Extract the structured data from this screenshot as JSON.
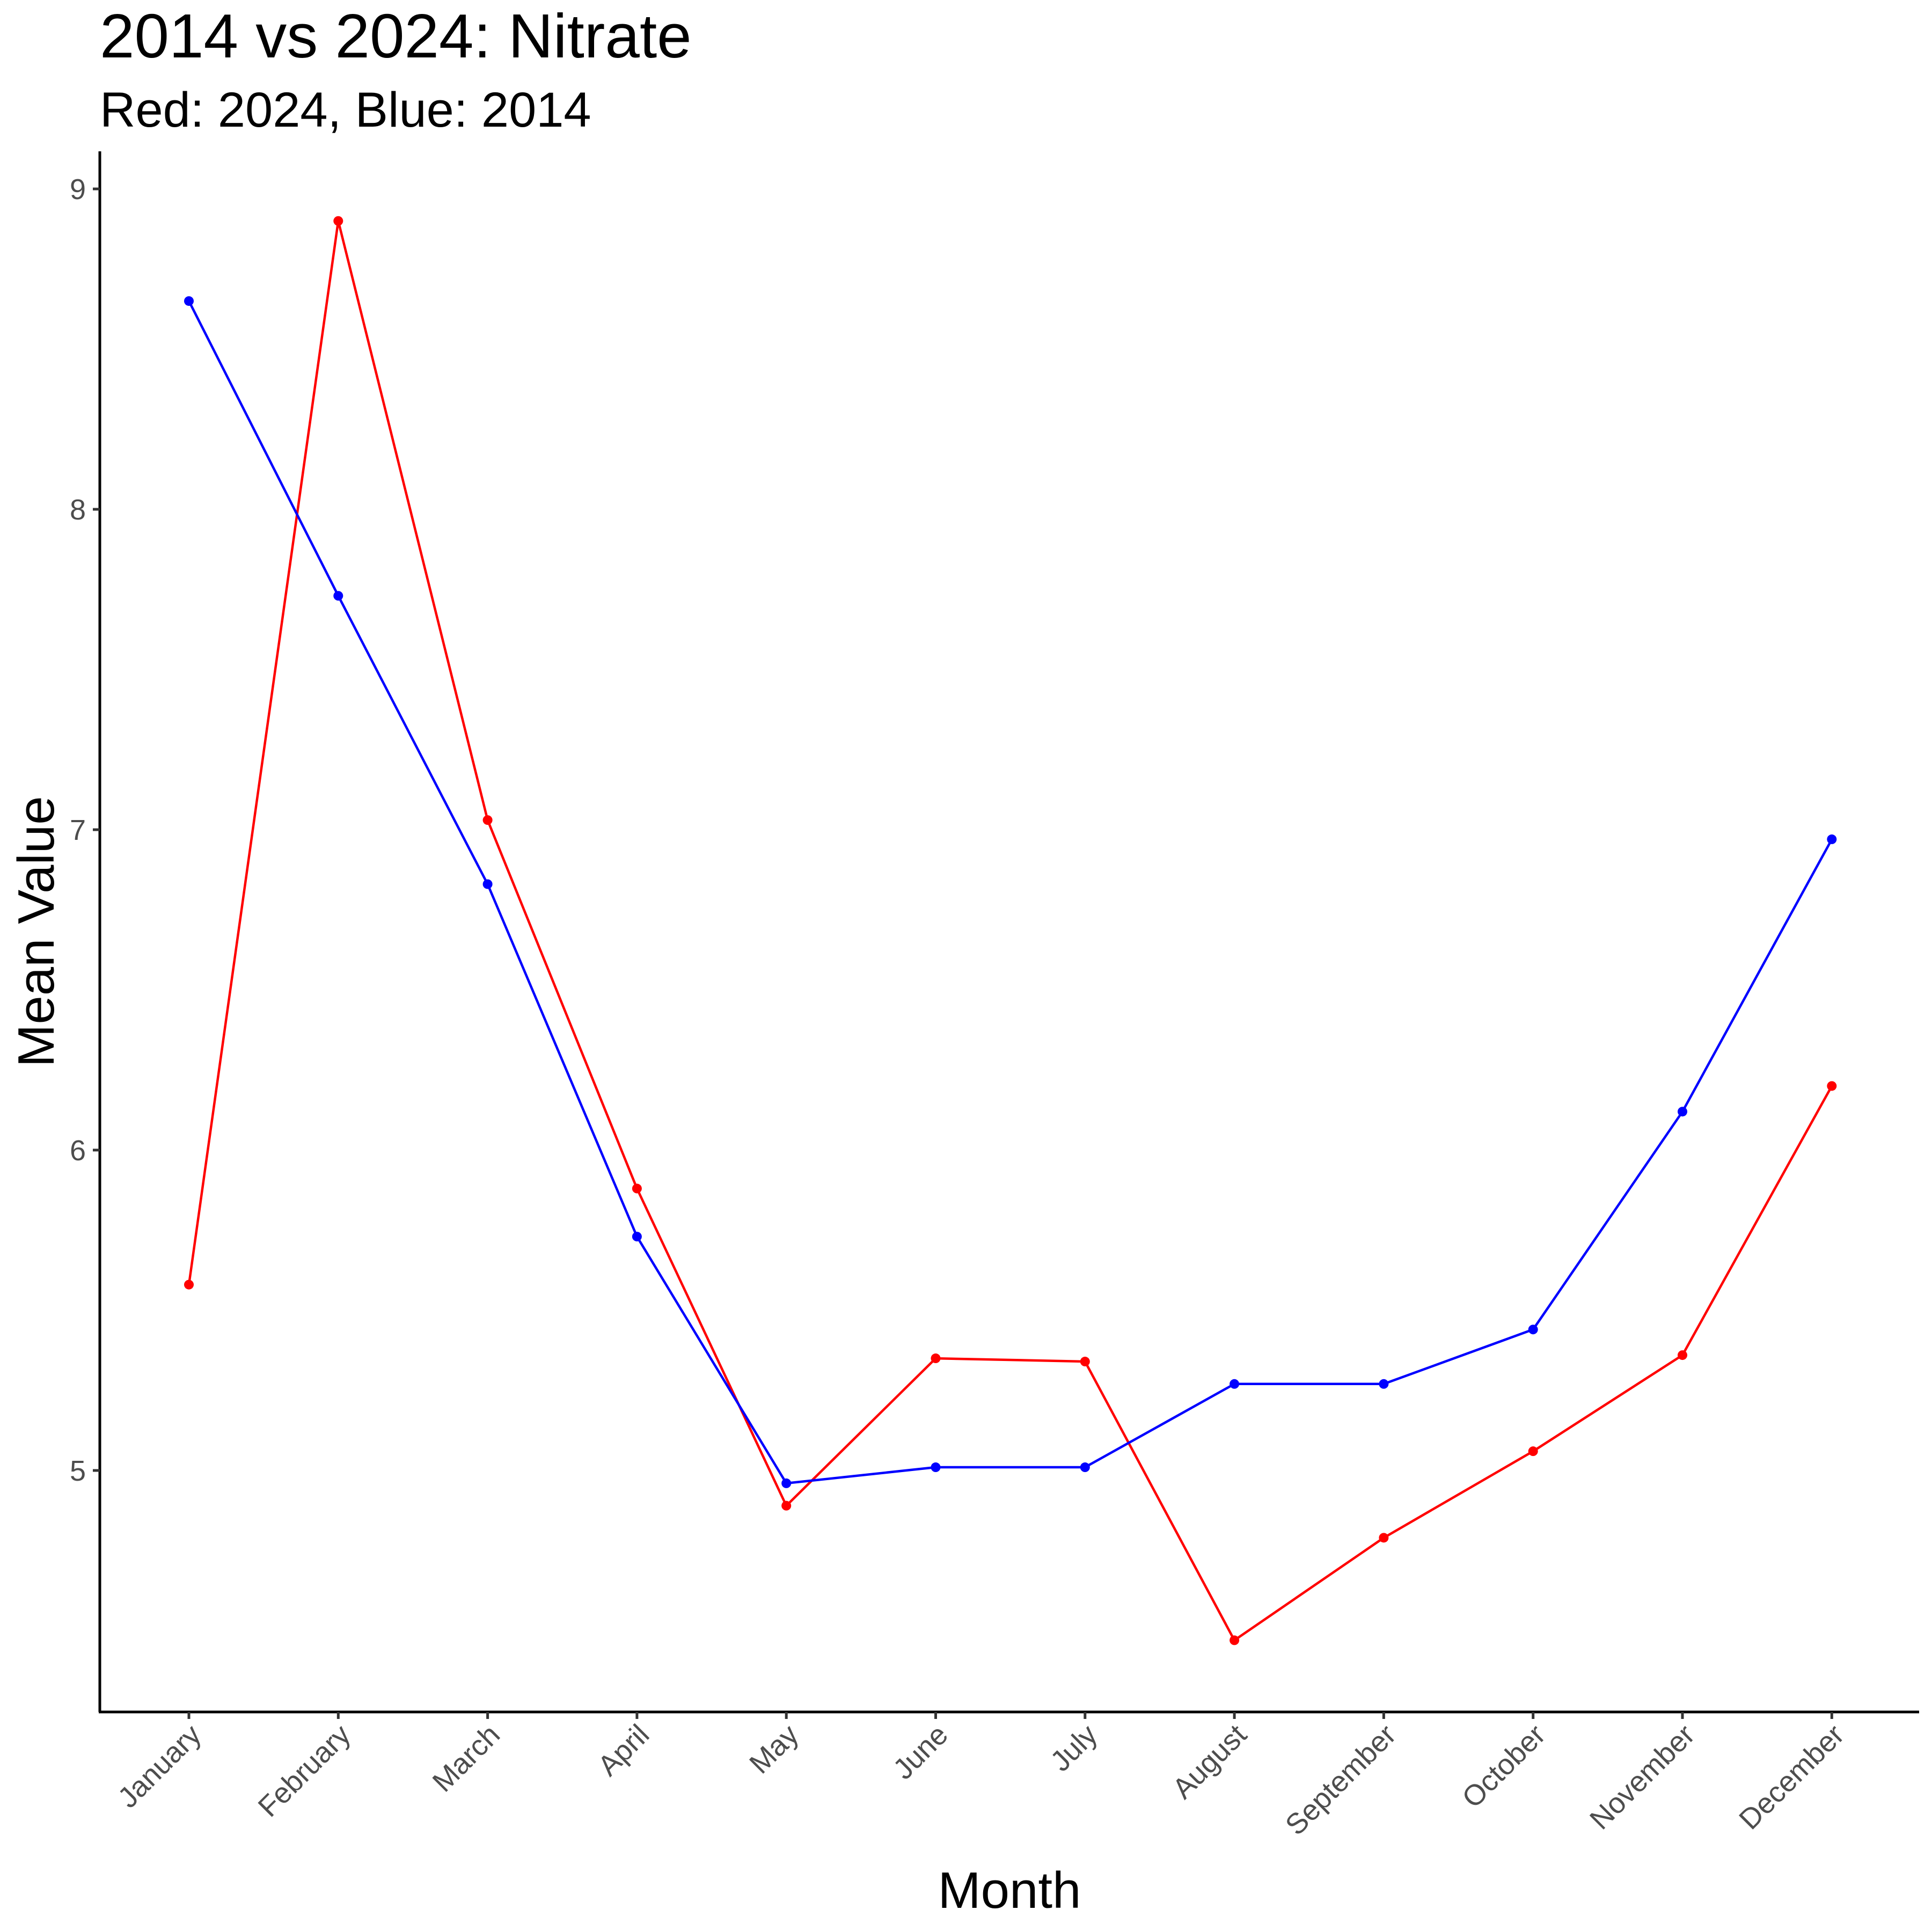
{
  "chart_data": {
    "type": "line",
    "title": "2014 vs 2024: Nitrate",
    "subtitle": "Red: 2024, Blue: 2014",
    "xlabel": "Month",
    "ylabel": "Mean Value",
    "categories": [
      "January",
      "February",
      "March",
      "April",
      "May",
      "June",
      "July",
      "August",
      "September",
      "October",
      "November",
      "December"
    ],
    "yticks": [
      5,
      6,
      7,
      8,
      9
    ],
    "ylim": [
      4.25,
      9.12
    ],
    "grid": false,
    "series": [
      {
        "color": "#ff0000",
        "values": [
          5.58,
          8.9,
          7.03,
          5.88,
          4.89,
          5.35,
          5.34,
          4.47,
          4.79,
          5.06,
          5.36,
          6.2
        ]
      },
      {
        "color": "#0000ff",
        "values": [
          8.65,
          7.73,
          6.83,
          5.73,
          4.96,
          5.01,
          5.01,
          5.27,
          5.27,
          5.44,
          6.12,
          6.97
        ]
      }
    ]
  }
}
